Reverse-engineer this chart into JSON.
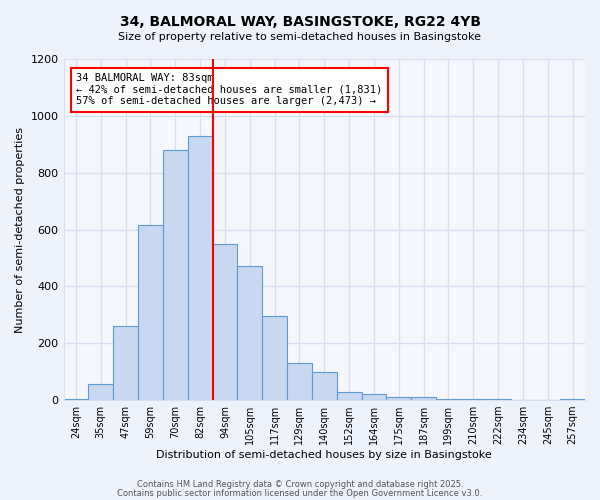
{
  "title": "34, BALMORAL WAY, BASINGSTOKE, RG22 4YB",
  "subtitle": "Size of property relative to semi-detached houses in Basingstoke",
  "xlabel": "Distribution of semi-detached houses by size in Basingstoke",
  "ylabel": "Number of semi-detached properties",
  "bar_labels": [
    "24sqm",
    "35sqm",
    "47sqm",
    "59sqm",
    "70sqm",
    "82sqm",
    "94sqm",
    "105sqm",
    "117sqm",
    "129sqm",
    "140sqm",
    "152sqm",
    "164sqm",
    "175sqm",
    "187sqm",
    "199sqm",
    "210sqm",
    "222sqm",
    "234sqm",
    "245sqm",
    "257sqm"
  ],
  "bar_values": [
    5,
    55,
    262,
    615,
    880,
    930,
    550,
    470,
    295,
    130,
    100,
    30,
    20,
    12,
    10,
    5,
    5,
    3,
    2,
    0,
    5
  ],
  "bar_color": "#c8d8f0",
  "bar_edge_color": "#5b9bd5",
  "vline_x": 5.5,
  "vline_color": "red",
  "vline_label_title": "34 BALMORAL WAY: 83sqm",
  "vline_label_line1": "← 42% of semi-detached houses are smaller (1,831)",
  "vline_label_line2": "57% of semi-detached houses are larger (2,473) →",
  "annotation_box_edge": "red",
  "ylim": [
    0,
    1200
  ],
  "yticks": [
    0,
    200,
    400,
    600,
    800,
    1000,
    1200
  ],
  "bg_color": "#eef2fb",
  "plot_bg_color": "#f5f7fd",
  "grid_color": "#d8dff0",
  "footer_line1": "Contains HM Land Registry data © Crown copyright and database right 2025.",
  "footer_line2": "Contains public sector information licensed under the Open Government Licence v3.0."
}
